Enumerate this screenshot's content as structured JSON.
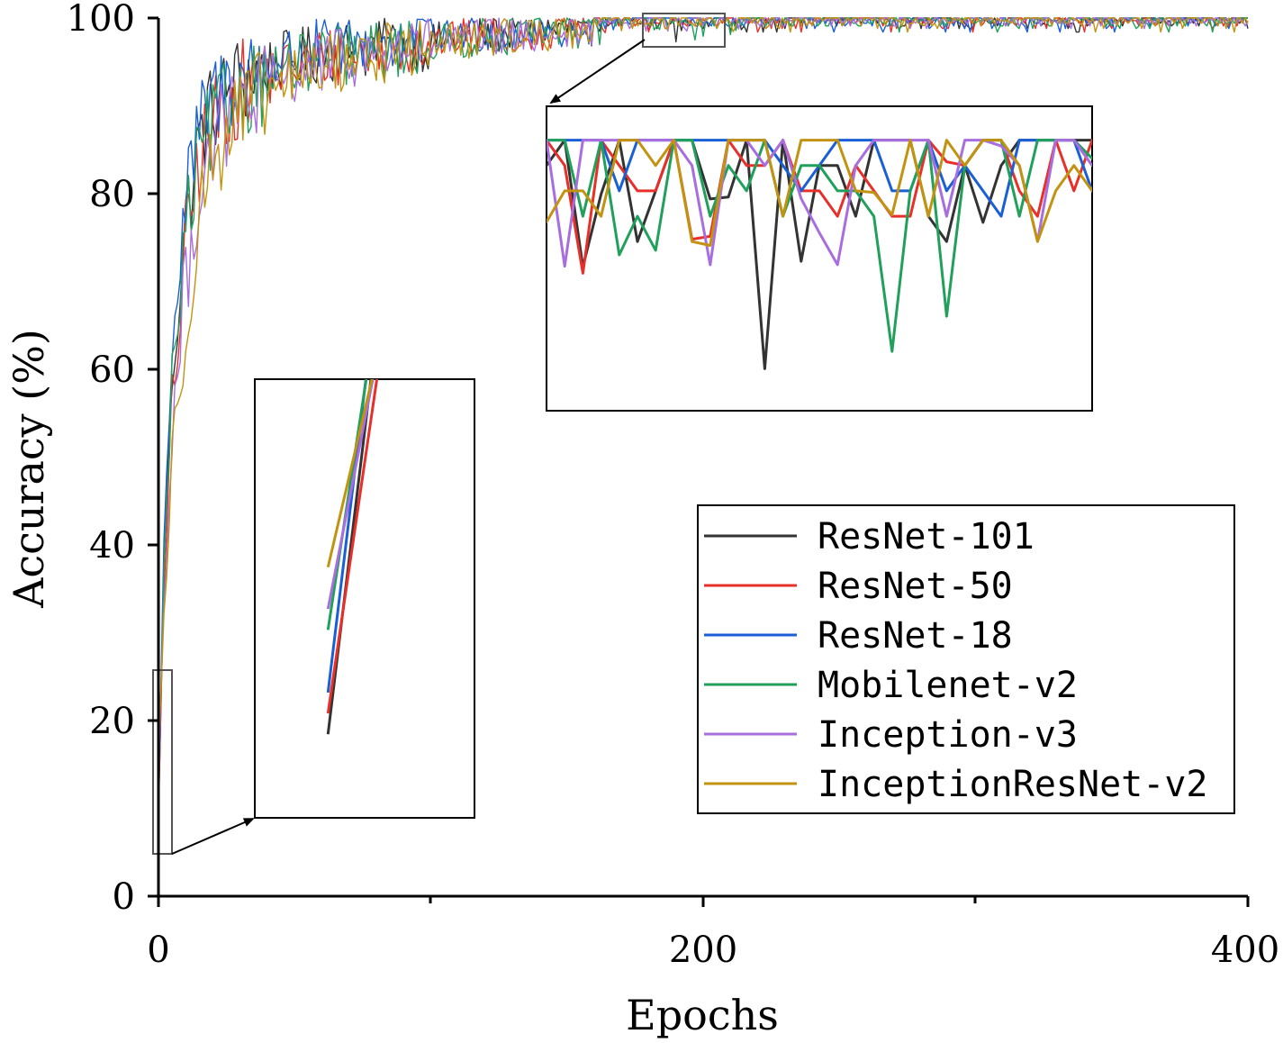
{
  "chart_data": {
    "type": "line",
    "title": "",
    "xlabel": "Epochs",
    "ylabel": "Accuracy (%)",
    "xlim": [
      0,
      400
    ],
    "ylim": [
      0,
      100
    ],
    "x_ticks": [
      "0",
      "200",
      "400"
    ],
    "x_minor_ticks": [
      100,
      300
    ],
    "y_ticks": [
      "0",
      "20",
      "40",
      "60",
      "80",
      "100"
    ],
    "grid": false,
    "legend_position": "bottom-right",
    "series": [
      {
        "name": "ResNet-101",
        "color": "#333333",
        "anchors": [
          [
            0,
            9
          ],
          [
            2,
            38
          ],
          [
            5,
            60
          ],
          [
            10,
            77
          ],
          [
            15,
            86
          ],
          [
            20,
            90
          ],
          [
            30,
            93
          ],
          [
            45,
            95
          ],
          [
            60,
            96
          ],
          [
            90,
            97
          ],
          [
            120,
            98
          ],
          [
            160,
            99
          ],
          [
            200,
            99.5
          ],
          [
            250,
            99.7
          ],
          [
            300,
            99.8
          ],
          [
            400,
            99.8
          ]
        ]
      },
      {
        "name": "ResNet-50",
        "color": "#e8302a",
        "anchors": [
          [
            0,
            10
          ],
          [
            2,
            34
          ],
          [
            5,
            56
          ],
          [
            10,
            74
          ],
          [
            15,
            84
          ],
          [
            20,
            88
          ],
          [
            30,
            92
          ],
          [
            45,
            94
          ],
          [
            60,
            95.5
          ],
          [
            90,
            97
          ],
          [
            120,
            98
          ],
          [
            160,
            99
          ],
          [
            200,
            99.5
          ],
          [
            250,
            99.7
          ],
          [
            300,
            99.8
          ],
          [
            400,
            99.8
          ]
        ]
      },
      {
        "name": "ResNet-18",
        "color": "#1a5fd6",
        "anchors": [
          [
            0,
            11
          ],
          [
            2,
            40
          ],
          [
            5,
            63
          ],
          [
            10,
            79
          ],
          [
            15,
            87
          ],
          [
            20,
            91
          ],
          [
            30,
            93.5
          ],
          [
            45,
            95.5
          ],
          [
            60,
            96.5
          ],
          [
            90,
            97.5
          ],
          [
            120,
            98.3
          ],
          [
            160,
            99
          ],
          [
            200,
            99.5
          ],
          [
            250,
            99.7
          ],
          [
            300,
            99.8
          ],
          [
            400,
            99.8
          ]
        ]
      },
      {
        "name": "Mobilenet-v2",
        "color": "#20a05a",
        "anchors": [
          [
            0,
            14
          ],
          [
            2,
            37
          ],
          [
            5,
            58
          ],
          [
            10,
            75
          ],
          [
            15,
            84
          ],
          [
            20,
            88
          ],
          [
            30,
            92
          ],
          [
            45,
            94
          ],
          [
            60,
            95.5
          ],
          [
            90,
            96.5
          ],
          [
            120,
            97.8
          ],
          [
            160,
            98.8
          ],
          [
            200,
            99.4
          ],
          [
            250,
            99.7
          ],
          [
            300,
            99.8
          ],
          [
            400,
            99.8
          ]
        ]
      },
      {
        "name": "Inception-v3",
        "color": "#a86ee0",
        "anchors": [
          [
            0,
            15
          ],
          [
            2,
            33
          ],
          [
            5,
            52
          ],
          [
            10,
            70
          ],
          [
            15,
            81
          ],
          [
            20,
            86
          ],
          [
            30,
            90
          ],
          [
            45,
            93
          ],
          [
            60,
            95
          ],
          [
            90,
            96.5
          ],
          [
            120,
            97.8
          ],
          [
            160,
            98.8
          ],
          [
            200,
            99.4
          ],
          [
            250,
            99.7
          ],
          [
            300,
            99.8
          ],
          [
            400,
            99.8
          ]
        ]
      },
      {
        "name": "InceptionResNet-v2",
        "color": "#c29310",
        "anchors": [
          [
            0,
            17
          ],
          [
            2,
            32
          ],
          [
            5,
            48
          ],
          [
            10,
            66
          ],
          [
            15,
            78
          ],
          [
            20,
            84
          ],
          [
            30,
            89
          ],
          [
            45,
            92.5
          ],
          [
            60,
            94.5
          ],
          [
            90,
            96.5
          ],
          [
            120,
            97.8
          ],
          [
            160,
            98.8
          ],
          [
            200,
            99.4
          ],
          [
            250,
            99.7
          ],
          [
            300,
            99.8
          ],
          [
            400,
            99.8
          ]
        ]
      }
    ],
    "insets": [
      {
        "name": "zoom-late-epochs",
        "source_x_range": [
          178,
          208
        ],
        "source_y_range": [
          96.8,
          100.4
        ]
      },
      {
        "name": "zoom-early-epochs",
        "source_x_range": [
          -1,
          5
        ],
        "source_y_range": [
          5,
          26
        ]
      }
    ]
  }
}
